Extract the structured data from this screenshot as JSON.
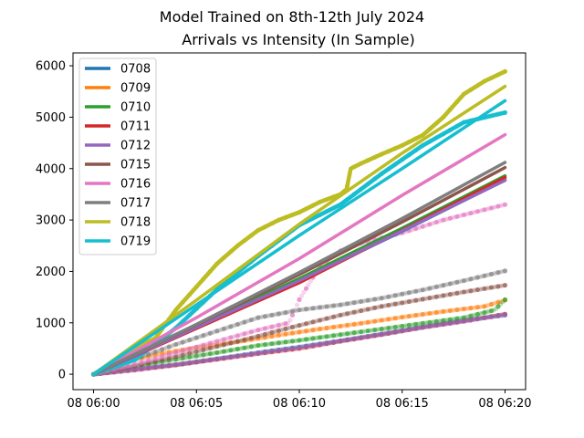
{
  "chart_data": {
    "type": "line",
    "title": "Model Trained on 8th-12th July 2024",
    "subtitle": "Arrivals vs Intensity (In Sample)",
    "xlabel": "",
    "ylabel": "",
    "x_ticks": [
      "08 06:00",
      "08 06:05",
      "08 06:10",
      "08 06:15",
      "08 06:20"
    ],
    "x_tick_minutes": [
      0,
      5,
      10,
      15,
      20
    ],
    "xlim_minutes": [
      -1,
      21
    ],
    "ylim": [
      -300,
      6250
    ],
    "y_ticks": [
      0,
      1000,
      2000,
      3000,
      4000,
      5000,
      6000
    ],
    "grid": false,
    "legend_position": "top-left",
    "series": [
      {
        "name": "0708",
        "color": "#1f77b4",
        "intensity": [
          [
            0,
            0
          ],
          [
            5,
            910
          ],
          [
            10,
            1820
          ],
          [
            15,
            2780
          ],
          [
            20,
            3780
          ]
        ],
        "arrivals": [
          [
            0,
            0
          ],
          [
            2,
            100
          ],
          [
            4,
            180
          ],
          [
            6,
            300
          ],
          [
            8,
            420
          ],
          [
            10,
            530
          ],
          [
            12,
            650
          ],
          [
            14,
            780
          ],
          [
            16,
            920
          ],
          [
            18,
            1050
          ],
          [
            20,
            1150
          ]
        ]
      },
      {
        "name": "0709",
        "color": "#ff7f0e",
        "intensity": [
          [
            0,
            0
          ],
          [
            5,
            920
          ],
          [
            10,
            1840
          ],
          [
            15,
            2800
          ],
          [
            20,
            3800
          ]
        ],
        "arrivals": [
          [
            0,
            0
          ],
          [
            1,
            180
          ],
          [
            3,
            380
          ],
          [
            5,
            520
          ],
          [
            7,
            630
          ],
          [
            9,
            760
          ],
          [
            11,
            880
          ],
          [
            13,
            990
          ],
          [
            15,
            1110
          ],
          [
            17,
            1220
          ],
          [
            19,
            1320
          ],
          [
            20,
            1440
          ]
        ]
      },
      {
        "name": "0710",
        "color": "#2ca02c",
        "intensity": [
          [
            0,
            0
          ],
          [
            5,
            930
          ],
          [
            10,
            1860
          ],
          [
            15,
            2840
          ],
          [
            20,
            3860
          ]
        ],
        "arrivals": [
          [
            0,
            0
          ],
          [
            2,
            150
          ],
          [
            4,
            290
          ],
          [
            6,
            420
          ],
          [
            8,
            560
          ],
          [
            10,
            660
          ],
          [
            12,
            770
          ],
          [
            14,
            880
          ],
          [
            16,
            990
          ],
          [
            18,
            1100
          ],
          [
            19.5,
            1250
          ],
          [
            20,
            1450
          ]
        ]
      },
      {
        "name": "0711",
        "color": "#d62728",
        "intensity": [
          [
            0,
            0
          ],
          [
            5,
            890
          ],
          [
            10,
            1780
          ],
          [
            15,
            2800
          ],
          [
            20,
            3830
          ]
        ],
        "arrivals": [
          [
            0,
            0
          ],
          [
            2,
            80
          ],
          [
            4,
            180
          ],
          [
            6,
            290
          ],
          [
            8,
            400
          ],
          [
            10,
            500
          ],
          [
            12,
            640
          ],
          [
            14,
            770
          ],
          [
            16,
            910
          ],
          [
            18,
            1030
          ],
          [
            20,
            1170
          ]
        ]
      },
      {
        "name": "0712",
        "color": "#9467bd",
        "intensity": [
          [
            0,
            0
          ],
          [
            5,
            910
          ],
          [
            10,
            1820
          ],
          [
            15,
            2790
          ],
          [
            20,
            3770
          ]
        ],
        "arrivals": [
          [
            0,
            0
          ],
          [
            2,
            90
          ],
          [
            4,
            190
          ],
          [
            6,
            300
          ],
          [
            8,
            410
          ],
          [
            10,
            520
          ],
          [
            12,
            650
          ],
          [
            14,
            780
          ],
          [
            16,
            910
          ],
          [
            18,
            1030
          ],
          [
            20,
            1160
          ]
        ]
      },
      {
        "name": "0715",
        "color": "#8c564b",
        "intensity": [
          [
            0,
            0
          ],
          [
            5,
            960
          ],
          [
            10,
            1940
          ],
          [
            15,
            2960
          ],
          [
            20,
            4020
          ]
        ],
        "arrivals": [
          [
            0,
            0
          ],
          [
            2,
            160
          ],
          [
            4,
            340
          ],
          [
            6,
            540
          ],
          [
            8,
            740
          ],
          [
            9.5,
            900
          ],
          [
            12,
            1150
          ],
          [
            14,
            1320
          ],
          [
            16,
            1460
          ],
          [
            18,
            1600
          ],
          [
            20,
            1730
          ]
        ]
      },
      {
        "name": "0716",
        "color": "#e377c2",
        "intensity": [
          [
            0,
            0
          ],
          [
            5,
            1100
          ],
          [
            10,
            2250
          ],
          [
            15,
            3480
          ],
          [
            20,
            4660
          ]
        ],
        "arrivals": [
          [
            0,
            0
          ],
          [
            2,
            190
          ],
          [
            4,
            420
          ],
          [
            6,
            640
          ],
          [
            8,
            860
          ],
          [
            9.5,
            1000
          ],
          [
            10,
            1450
          ],
          [
            11,
            2100
          ],
          [
            12,
            2400
          ],
          [
            13,
            2550
          ],
          [
            15,
            2750
          ],
          [
            17,
            3000
          ],
          [
            19,
            3200
          ],
          [
            20,
            3300
          ]
        ]
      },
      {
        "name": "0717",
        "color": "#7f7f7f",
        "intensity": [
          [
            0,
            0
          ],
          [
            5,
            970
          ],
          [
            10,
            1980
          ],
          [
            15,
            3030
          ],
          [
            20,
            4120
          ]
        ],
        "arrivals": [
          [
            0,
            0
          ],
          [
            2,
            290
          ],
          [
            4,
            580
          ],
          [
            6,
            840
          ],
          [
            8,
            1100
          ],
          [
            10,
            1250
          ],
          [
            12,
            1350
          ],
          [
            14,
            1480
          ],
          [
            16,
            1640
          ],
          [
            18,
            1820
          ],
          [
            20,
            2010
          ]
        ]
      },
      {
        "name": "0718",
        "color": "#bcbd22",
        "intensity": [
          [
            0,
            0
          ],
          [
            5,
            1440
          ],
          [
            10,
            2920
          ],
          [
            15,
            4300
          ],
          [
            20,
            5600
          ]
        ],
        "arrivals": [
          [
            0,
            0
          ],
          [
            1,
            250
          ],
          [
            2,
            500
          ],
          [
            3,
            700
          ],
          [
            4,
            1250
          ],
          [
            5,
            1700
          ],
          [
            6,
            2150
          ],
          [
            7,
            2500
          ],
          [
            8,
            2800
          ],
          [
            9,
            3000
          ],
          [
            10,
            3150
          ],
          [
            11,
            3350
          ],
          [
            12,
            3500
          ],
          [
            12.3,
            3600
          ],
          [
            12.5,
            4000
          ],
          [
            13,
            4100
          ],
          [
            14,
            4280
          ],
          [
            15,
            4450
          ],
          [
            16,
            4650
          ],
          [
            17,
            5000
          ],
          [
            18,
            5450
          ],
          [
            19,
            5700
          ],
          [
            20,
            5890
          ]
        ]
      },
      {
        "name": "0719",
        "color": "#17becf",
        "intensity": [
          [
            0,
            0
          ],
          [
            5,
            1350
          ],
          [
            10,
            2700
          ],
          [
            15,
            4000
          ],
          [
            20,
            5320
          ]
        ],
        "arrivals": [
          [
            0,
            0
          ],
          [
            2,
            280
          ],
          [
            4,
            900
          ],
          [
            6,
            1650
          ],
          [
            8,
            2300
          ],
          [
            10,
            2900
          ],
          [
            12,
            3300
          ],
          [
            14,
            3900
          ],
          [
            16,
            4450
          ],
          [
            18,
            4900
          ],
          [
            20,
            5090
          ]
        ]
      }
    ]
  }
}
